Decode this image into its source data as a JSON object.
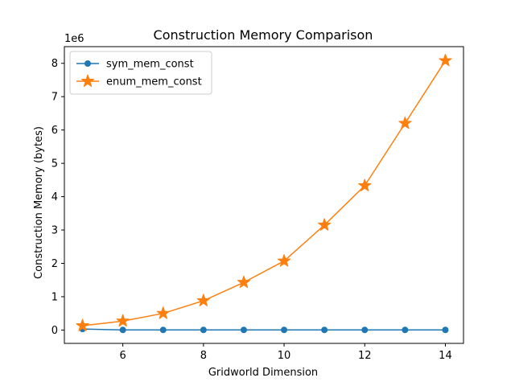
{
  "chart_data": {
    "type": "line",
    "title": "Construction Memory Comparison",
    "xlabel": "Gridworld Dimension",
    "ylabel": "Construction Memory (bytes)",
    "y_offset_label": "1e6",
    "x": [
      5,
      6,
      7,
      8,
      9,
      10,
      11,
      12,
      13,
      14
    ],
    "xlim": [
      4.55,
      14.45
    ],
    "ylim": [
      -0.4,
      8.5
    ],
    "x_ticks": [
      6,
      8,
      10,
      12,
      14
    ],
    "y_ticks": [
      0,
      1,
      2,
      3,
      4,
      5,
      6,
      7,
      8
    ],
    "y_unit_scale": 1000000,
    "grid": false,
    "legend_position": "top-left",
    "series": [
      {
        "name": "sym_mem_const",
        "color": "#1f77b4",
        "marker": "circle",
        "values": [
          30000,
          4000,
          4000,
          4000,
          4000,
          4000,
          4000,
          4000,
          4000,
          4000
        ]
      },
      {
        "name": "enum_mem_const",
        "color": "#ff7f0e",
        "marker": "star",
        "values": [
          130000,
          270000,
          500000,
          880000,
          1430000,
          2070000,
          3150000,
          4330000,
          6200000,
          8080000
        ]
      }
    ]
  }
}
